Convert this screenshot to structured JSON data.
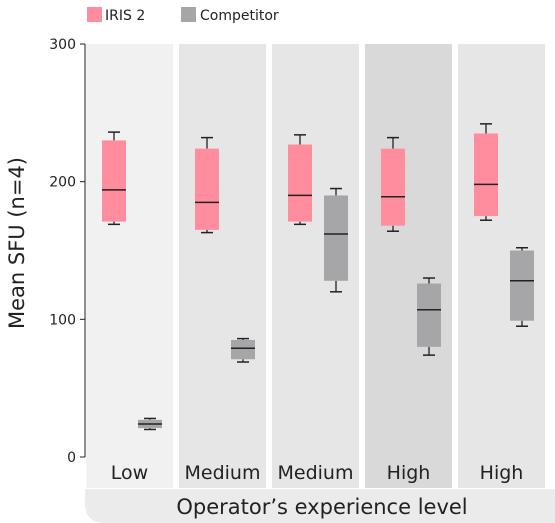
{
  "chart_data": {
    "type": "box",
    "ylabel": "Mean SFU (n=4)",
    "xlabel": "Operator’s experience level",
    "ylim": [
      0,
      300
    ],
    "yticks": [
      0,
      100,
      200,
      300
    ],
    "groups": [
      "Low",
      "Medium",
      "Medium",
      "High",
      "High"
    ],
    "group_shades": [
      "#f1f1f1",
      "#e6e6e6",
      "#e6e6e6",
      "#d9d9d9",
      "#e6e6e6"
    ],
    "series": [
      {
        "name": "IRIS 2",
        "color": "#ff8d9d",
        "boxes": [
          {
            "whisker_low": 169,
            "q1": 171,
            "median": 194,
            "q3": 230,
            "whisker_high": 236
          },
          {
            "whisker_low": 163,
            "q1": 165,
            "median": 185,
            "q3": 224,
            "whisker_high": 232
          },
          {
            "whisker_low": 169,
            "q1": 171,
            "median": 190,
            "q3": 227,
            "whisker_high": 234
          },
          {
            "whisker_low": 164,
            "q1": 168,
            "median": 189,
            "q3": 224,
            "whisker_high": 232
          },
          {
            "whisker_low": 172,
            "q1": 175,
            "median": 198,
            "q3": 235,
            "whisker_high": 242
          }
        ]
      },
      {
        "name": "Competitor",
        "color": "#a6a6a8",
        "boxes": [
          {
            "whisker_low": 20,
            "q1": 21,
            "median": 24,
            "q3": 27,
            "whisker_high": 28
          },
          {
            "whisker_low": 69,
            "q1": 71,
            "median": 79,
            "q3": 85,
            "whisker_high": 86
          },
          {
            "whisker_low": 120,
            "q1": 128,
            "median": 162,
            "q3": 190,
            "whisker_high": 195
          },
          {
            "whisker_low": 74,
            "q1": 80,
            "median": 107,
            "q3": 126,
            "whisker_high": 130
          },
          {
            "whisker_low": 95,
            "q1": 99,
            "median": 128,
            "q3": 150,
            "whisker_high": 152
          }
        ]
      }
    ],
    "legend": {
      "position": "top-left"
    },
    "grid": false
  }
}
